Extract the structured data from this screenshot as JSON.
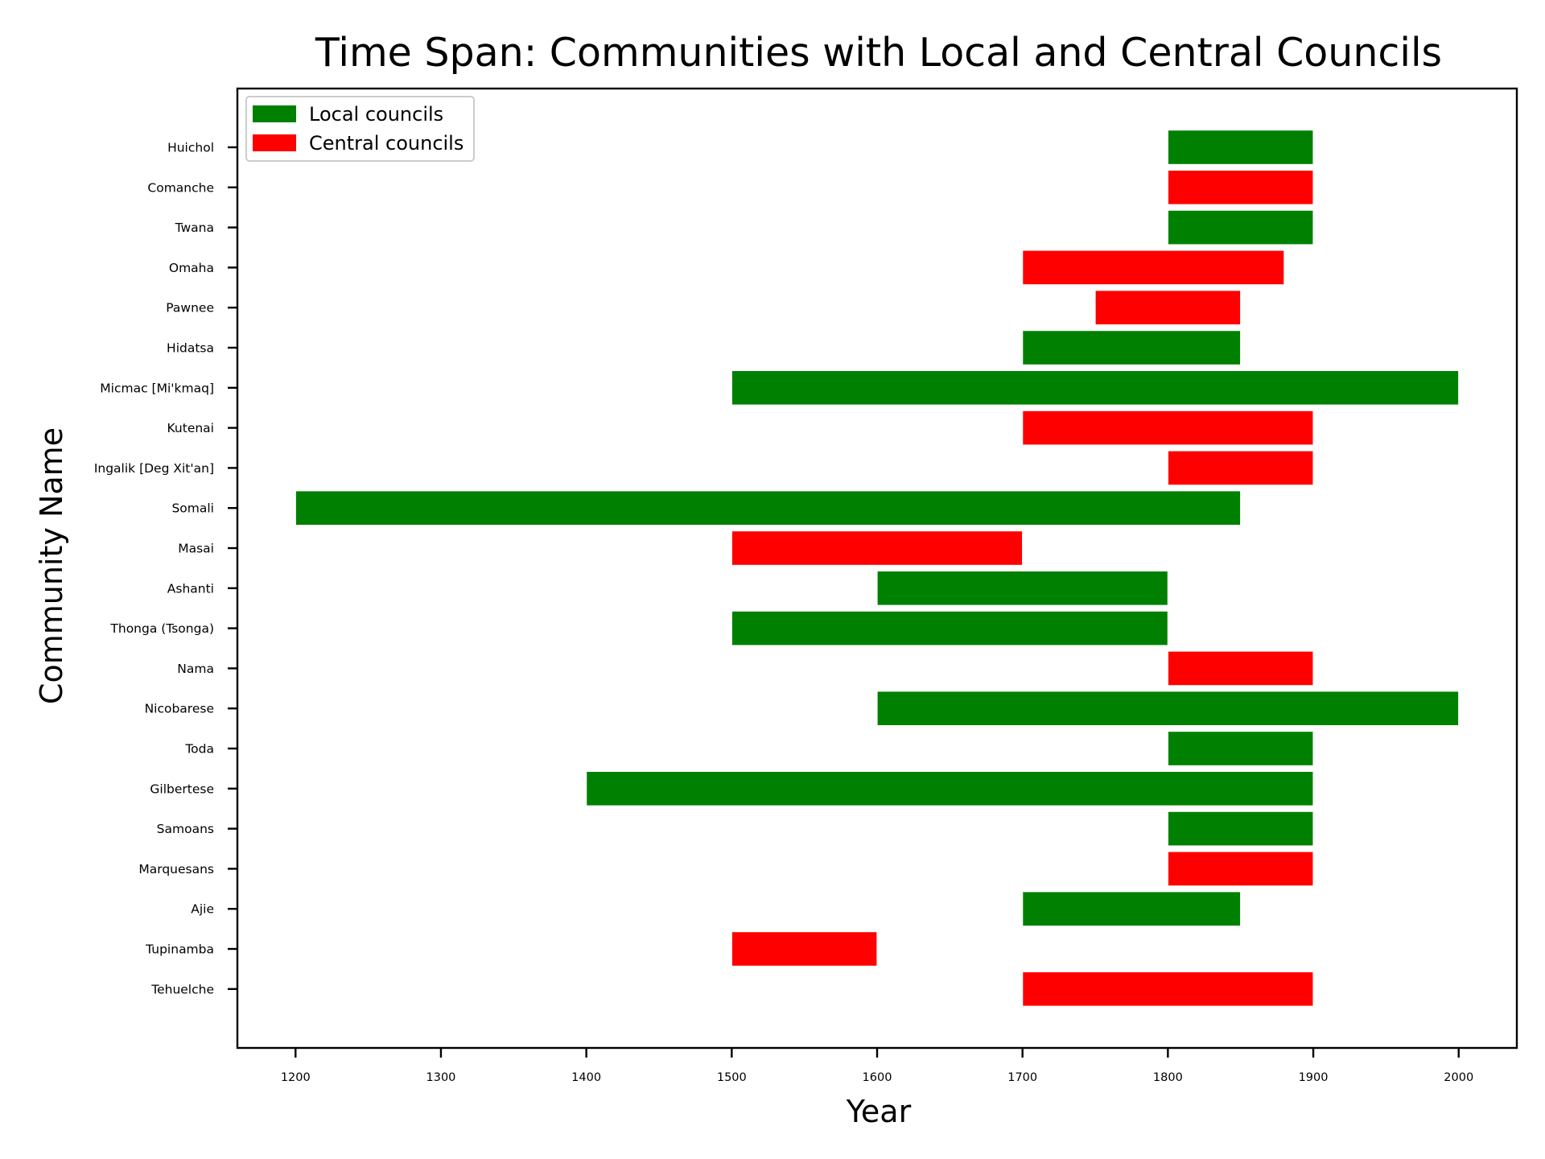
{
  "chart_data": {
    "type": "bar",
    "orientation": "horizontal",
    "title": "Time Span: Communities with Local and Central Councils",
    "xlabel": "Year",
    "ylabel": "Community Name",
    "xlim": [
      1160,
      2040
    ],
    "x_ticks": [
      1200,
      1300,
      1400,
      1500,
      1600,
      1700,
      1800,
      1900,
      2000
    ],
    "grid": false,
    "legend_position": "top-left",
    "legend": [
      {
        "name": "Local councils",
        "color": "#008000"
      },
      {
        "name": "Central councils",
        "color": "#ff0000"
      }
    ],
    "categories": [
      "Huichol",
      "Comanche",
      "Twana",
      "Omaha",
      "Pawnee",
      "Hidatsa",
      "Micmac [Mi'kmaq]",
      "Kutenai",
      "Ingalik [Deg Xit'an]",
      "Somali",
      "Masai",
      "Ashanti",
      "Thonga (Tsonga)",
      "Nama",
      "Nicobarese",
      "Toda",
      "Gilbertese",
      "Samoans ",
      "Marquesans",
      "Ajie",
      "Tupinamba",
      "Tehuelche"
    ],
    "bars": [
      {
        "community": "Huichol",
        "council": "Local councils",
        "start": 1800,
        "end": 1900
      },
      {
        "community": "Comanche",
        "council": "Central councils",
        "start": 1800,
        "end": 1900
      },
      {
        "community": "Twana",
        "council": "Local councils",
        "start": 1800,
        "end": 1900
      },
      {
        "community": "Omaha",
        "council": "Central councils",
        "start": 1700,
        "end": 1880
      },
      {
        "community": "Pawnee",
        "council": "Central councils",
        "start": 1750,
        "end": 1850
      },
      {
        "community": "Hidatsa",
        "council": "Local councils",
        "start": 1700,
        "end": 1850
      },
      {
        "community": "Micmac [Mi'kmaq]",
        "council": "Local councils",
        "start": 1500,
        "end": 2000
      },
      {
        "community": "Kutenai",
        "council": "Central councils",
        "start": 1700,
        "end": 1900
      },
      {
        "community": "Ingalik [Deg Xit'an]",
        "council": "Central councils",
        "start": 1800,
        "end": 1900
      },
      {
        "community": "Somali",
        "council": "Local councils",
        "start": 1200,
        "end": 1850
      },
      {
        "community": "Masai",
        "council": "Central councils",
        "start": 1500,
        "end": 1700
      },
      {
        "community": "Ashanti",
        "council": "Local councils",
        "start": 1600,
        "end": 1800
      },
      {
        "community": "Thonga (Tsonga)",
        "council": "Local councils",
        "start": 1500,
        "end": 1800
      },
      {
        "community": "Nama",
        "council": "Central councils",
        "start": 1800,
        "end": 1900
      },
      {
        "community": "Nicobarese",
        "council": "Local councils",
        "start": 1600,
        "end": 2000
      },
      {
        "community": "Toda",
        "council": "Local councils",
        "start": 1800,
        "end": 1900
      },
      {
        "community": "Gilbertese",
        "council": "Local councils",
        "start": 1400,
        "end": 1900
      },
      {
        "community": "Samoans ",
        "council": "Local councils",
        "start": 1800,
        "end": 1900
      },
      {
        "community": "Marquesans",
        "council": "Central councils",
        "start": 1800,
        "end": 1900
      },
      {
        "community": "Ajie",
        "council": "Local councils",
        "start": 1700,
        "end": 1850
      },
      {
        "community": "Tupinamba",
        "council": "Central councils",
        "start": 1500,
        "end": 1600
      },
      {
        "community": "Tehuelche",
        "council": "Central councils",
        "start": 1700,
        "end": 1900
      }
    ]
  }
}
